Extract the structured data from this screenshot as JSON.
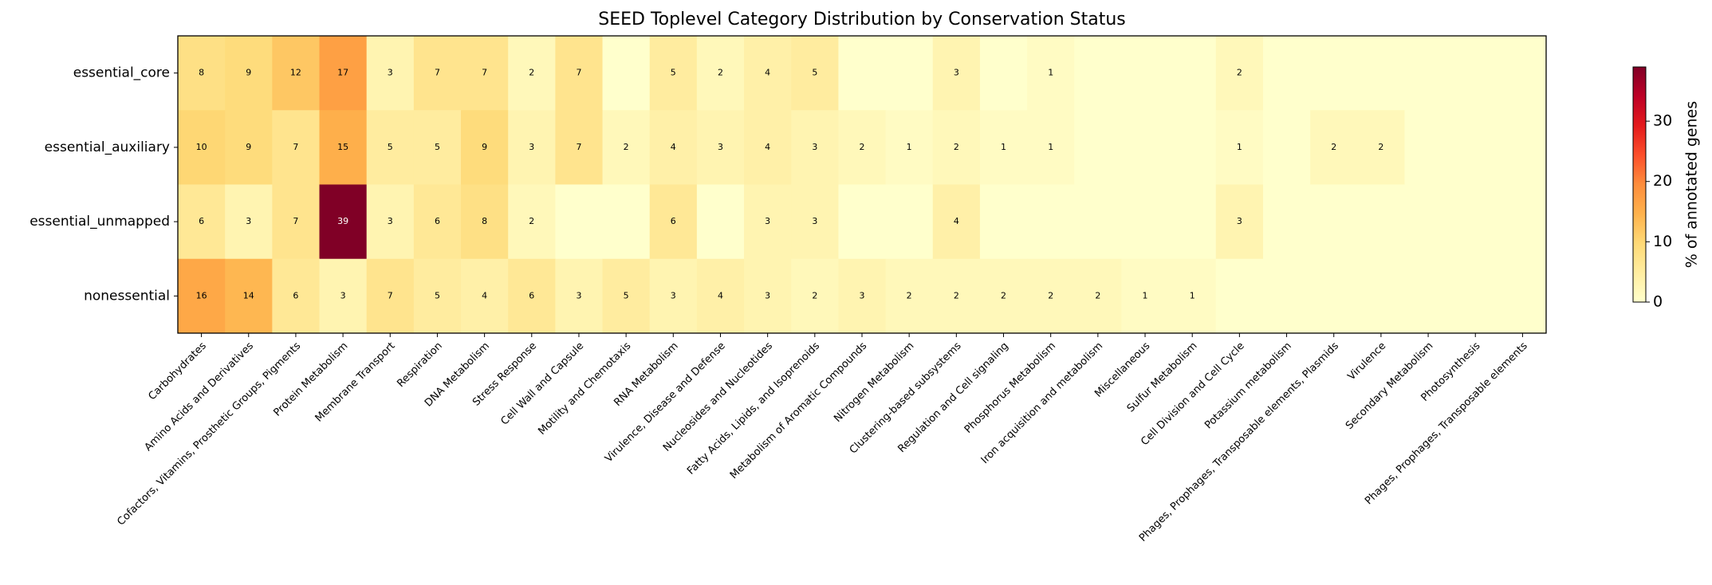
{
  "chart_data": {
    "type": "heatmap",
    "title": "SEED Toplevel Category Distribution by Conservation Status",
    "categories": [
      "Carbohydrates",
      "Amino Acids and Derivatives",
      "Cofactors, Vitamins, Prosthetic Groups, Pigments",
      "Protein Metabolism",
      "Membrane Transport",
      "Respiration",
      "DNA Metabolism",
      "Stress Response",
      "Cell Wall and Capsule",
      "Motility and Chemotaxis",
      "RNA Metabolism",
      "Virulence, Disease and Defense",
      "Nucleosides and Nucleotides",
      "Fatty Acids, Lipids, and Isoprenoids",
      "Metabolism of Aromatic Compounds",
      "Nitrogen Metabolism",
      "Clustering-based subsystems",
      "Regulation and Cell signaling",
      "Phosphorus Metabolism",
      "Iron acquisition and metabolism",
      "Miscellaneous",
      "Sulfur Metabolism",
      "Cell Division and Cell Cycle",
      "Potassium metabolism",
      "Phages, Prophages, Transposable elements, Plasmids",
      "Virulence",
      "Secondary Metabolism",
      "Photosynthesis",
      "Phages, Prophages, Transposable elements"
    ],
    "rows": [
      "essential_core",
      "essential_auxiliary",
      "essential_unmapped",
      "nonessential"
    ],
    "values": [
      [
        8,
        9,
        12,
        17,
        3,
        7,
        7,
        2,
        7,
        0,
        5,
        2,
        4,
        5,
        0,
        0,
        3,
        0,
        1,
        0,
        0,
        0,
        2,
        0,
        0,
        0,
        0,
        0,
        0
      ],
      [
        10,
        9,
        7,
        15,
        5,
        5,
        9,
        3,
        7,
        2,
        4,
        3,
        4,
        3,
        2,
        1,
        2,
        1,
        1,
        0,
        0,
        0,
        1,
        0,
        2,
        2,
        0,
        0,
        0
      ],
      [
        6,
        3,
        7,
        39,
        3,
        6,
        8,
        2,
        0,
        0,
        6,
        0,
        3,
        3,
        0,
        0,
        4,
        0,
        0,
        0,
        0,
        0,
        3,
        0,
        0,
        0,
        0,
        0,
        0
      ],
      [
        16,
        14,
        6,
        3,
        7,
        5,
        4,
        6,
        3,
        5,
        3,
        4,
        3,
        2,
        3,
        2,
        2,
        2,
        2,
        2,
        1,
        1,
        0,
        0,
        0,
        0,
        0,
        0,
        0
      ]
    ],
    "value_labels": [
      [
        "8",
        "9",
        "12",
        "17",
        "3",
        "7",
        "7",
        "2",
        "7",
        null,
        "5",
        "2",
        "4",
        "5",
        null,
        null,
        "3",
        null,
        "1",
        null,
        null,
        null,
        "2",
        null,
        null,
        null,
        null,
        null,
        null
      ],
      [
        "10",
        "9",
        "7",
        "15",
        "5",
        "5",
        "9",
        "3",
        "7",
        "2",
        "4",
        "3",
        "4",
        "3",
        "2",
        "1",
        "2",
        "1",
        "1",
        null,
        null,
        null,
        "1",
        null,
        "2",
        "2",
        null,
        null,
        null
      ],
      [
        "6",
        "3",
        "7",
        "39",
        "3",
        "6",
        "8",
        "2",
        null,
        null,
        "6",
        null,
        "3",
        "3",
        null,
        null,
        "4",
        null,
        null,
        null,
        null,
        null,
        "3",
        null,
        null,
        null,
        null,
        null,
        null
      ],
      [
        "16",
        "14",
        "6",
        "3",
        "7",
        "5",
        "4",
        "6",
        "3",
        "5",
        "3",
        "4",
        "3",
        "2",
        "3",
        "2",
        "2",
        "2",
        "2",
        "2",
        "1",
        "1",
        null,
        null,
        null,
        null,
        null,
        null,
        null
      ]
    ],
    "colormap": "YlOrRd",
    "clim": [
      0,
      39
    ],
    "colorbar_ticks": [
      0,
      10,
      20,
      30
    ],
    "colorbar_label": "% of annotated genes"
  }
}
